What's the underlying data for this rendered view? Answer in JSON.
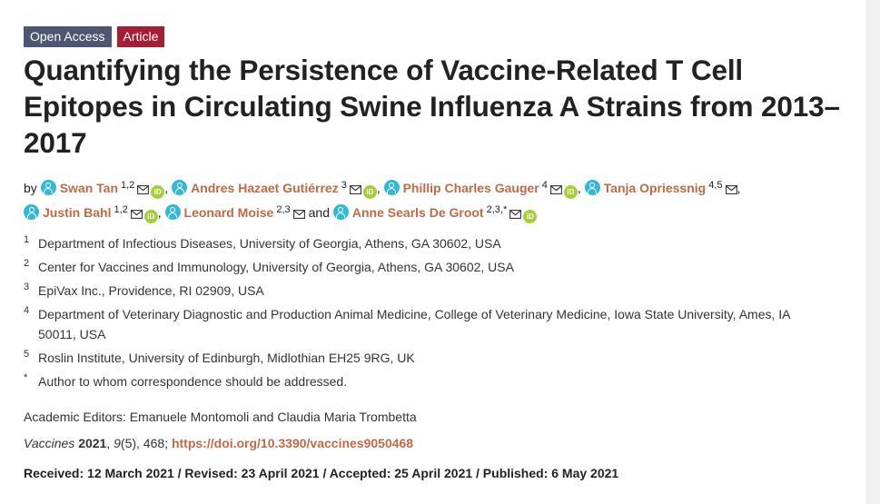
{
  "badges": {
    "open_access": "Open Access",
    "article": "Article"
  },
  "title": "Quantifying the Persistence of Vaccine-Related T Cell Epitopes in Circulating Swine Influenza A Strains from 2013–2017",
  "authors_prefix": "by",
  "authors": [
    {
      "name": "Swan Tan",
      "sup": "1,2",
      "email": true,
      "orcid": true,
      "sep": ","
    },
    {
      "name": "Andres Hazaet Gutiérrez",
      "sup": "3",
      "email": true,
      "orcid": true,
      "sep": ","
    },
    {
      "name": "Phillip Charles Gauger",
      "sup": "4",
      "email": true,
      "orcid": true,
      "sep": ","
    },
    {
      "name": "Tanja Opriessnig",
      "sup": "4,5",
      "email": true,
      "orcid": false,
      "sep": ","
    },
    {
      "name": "Justin Bahl",
      "sup": "1,2",
      "email": true,
      "orcid": true,
      "sep": ","
    },
    {
      "name": "Leonard Moise",
      "sup": "2,3",
      "email": true,
      "orcid": false,
      "sep": "and"
    },
    {
      "name": "Anne Searls De Groot",
      "sup": "2,3,*",
      "email": true,
      "orcid": true,
      "sep": ""
    }
  ],
  "affiliations": [
    {
      "num": "1",
      "text": "Department of Infectious Diseases, University of Georgia, Athens, GA 30602, USA"
    },
    {
      "num": "2",
      "text": "Center for Vaccines and Immunology, University of Georgia, Athens, GA 30602, USA"
    },
    {
      "num": "3",
      "text": "EpiVax Inc., Providence, RI 02909, USA"
    },
    {
      "num": "4",
      "text": "Department of Veterinary Diagnostic and Production Animal Medicine, College of Veterinary Medicine, Iowa State University, Ames, IA 50011, USA"
    },
    {
      "num": "5",
      "text": "Roslin Institute, University of Edinburgh, Midlothian EH25 9RG, UK"
    },
    {
      "num": "*",
      "text": "Author to whom correspondence should be addressed."
    }
  ],
  "editors": "Academic Editors: Emanuele Montomoli and Claudia Maria Trombetta",
  "citation": {
    "journal": "Vaccines",
    "year": "2021",
    "volume": "9",
    "issue": "(5), 468; ",
    "doi": "https://doi.org/10.3390/vaccines9050468"
  },
  "dates": "Received: 12 March 2021 / Revised: 23 April 2021 / Accepted: 25 April 2021 / Published: 6 May 2021",
  "colors": {
    "author_link": "#c06a45",
    "open_access_badge": "#4f5671",
    "article_badge": "#a51e36",
    "user_icon": "#34b8d8",
    "orcid": "#a6ce39"
  }
}
